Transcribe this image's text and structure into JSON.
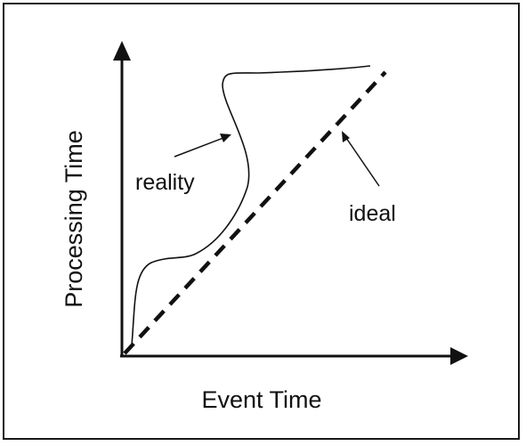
{
  "diagram": {
    "x_axis_label": "Event Time",
    "y_axis_label": "Processing Time",
    "reality_label": "reality",
    "ideal_label": "ideal"
  }
}
